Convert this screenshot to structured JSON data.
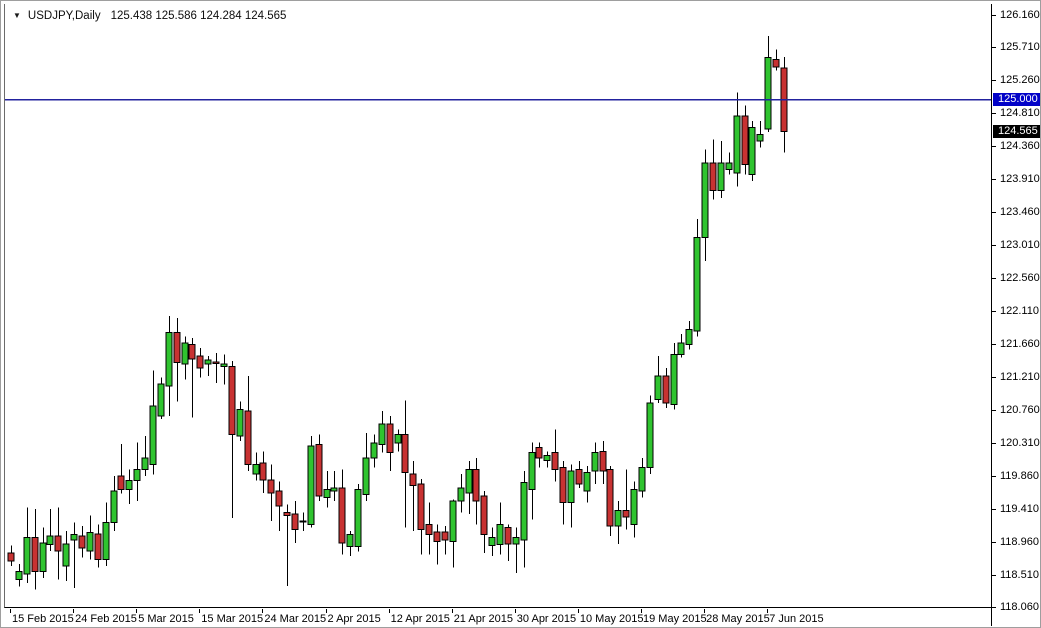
{
  "chart_data": {
    "type": "candlestick",
    "symbol": "USDJPY",
    "timeframe": "Daily",
    "title": "USDJPY,Daily",
    "ohlc_text": "125.438 125.586 124.284 124.565",
    "current_ohlc": {
      "open": 125.438,
      "high": 125.586,
      "low": 124.284,
      "close": 124.565
    },
    "y_axis": {
      "min": 118.06,
      "max": 126.16,
      "tick_step": 0.45,
      "ticks": [
        "126.160",
        "125.710",
        "125.260",
        "124.810",
        "124.360",
        "123.910",
        "123.460",
        "123.010",
        "122.560",
        "122.110",
        "121.660",
        "121.210",
        "120.760",
        "120.310",
        "119.860",
        "119.410",
        "118.960",
        "118.510",
        "118.060"
      ]
    },
    "x_axis": {
      "ticks": [
        {
          "label": "15 Feb 2015",
          "candle": 0
        },
        {
          "label": "24 Feb 2015",
          "candle": 8
        },
        {
          "label": "5 Mar 2015",
          "candle": 16
        },
        {
          "label": "15 Mar 2015",
          "candle": 24
        },
        {
          "label": "24 Mar 2015",
          "candle": 32
        },
        {
          "label": "2 Apr 2015",
          "candle": 40
        },
        {
          "label": "12 Apr 2015",
          "candle": 48
        },
        {
          "label": "21 Apr 2015",
          "candle": 56
        },
        {
          "label": "30 Apr 2015",
          "candle": 64
        },
        {
          "label": "10 May 2015",
          "candle": 72
        },
        {
          "label": "19 May 2015",
          "candle": 80
        },
        {
          "label": "28 May 2015",
          "candle": 88
        },
        {
          "label": "7 Jun 2015",
          "candle": 96
        }
      ]
    },
    "horizontal_line": {
      "price": 125.0,
      "label": "125.000",
      "line_color": "#22229e",
      "tag_color": "#0202c8"
    },
    "current_price_tag": {
      "price": 124.565,
      "label": "124.565",
      "tag_color": "#000000"
    },
    "colors": {
      "bull": "#2fc42f",
      "bear": "#c83232",
      "wick": "#000000",
      "background": "#ffffff"
    },
    "legend_position": "none",
    "grid": false,
    "candles": [
      [
        118.81,
        118.91,
        118.63,
        118.7
      ],
      [
        118.45,
        118.66,
        118.35,
        118.56
      ],
      [
        118.52,
        119.43,
        118.4,
        119.02
      ],
      [
        119.02,
        119.41,
        118.31,
        118.56
      ],
      [
        118.56,
        119.16,
        118.47,
        118.95
      ],
      [
        118.93,
        119.41,
        118.84,
        119.04
      ],
      [
        119.04,
        119.43,
        118.45,
        118.84
      ],
      [
        118.63,
        119.11,
        118.43,
        118.93
      ],
      [
        118.99,
        119.23,
        118.33,
        119.06
      ],
      [
        119.04,
        119.18,
        118.75,
        118.88
      ],
      [
        118.84,
        119.32,
        118.72,
        119.09
      ],
      [
        119.07,
        119.2,
        118.61,
        118.72
      ],
      [
        118.72,
        119.5,
        118.63,
        119.23
      ],
      [
        119.23,
        119.86,
        119.11,
        119.66
      ],
      [
        119.86,
        120.3,
        119.62,
        119.68
      ],
      [
        119.68,
        119.95,
        119.48,
        119.8
      ],
      [
        119.8,
        120.32,
        119.52,
        119.95
      ],
      [
        119.95,
        120.41,
        119.86,
        120.11
      ],
      [
        120.02,
        121.3,
        119.88,
        120.82
      ],
      [
        120.68,
        121.21,
        120.64,
        121.12
      ],
      [
        121.09,
        122.05,
        120.68,
        121.82
      ],
      [
        121.82,
        122.02,
        120.88,
        121.41
      ],
      [
        121.39,
        121.77,
        121.18,
        121.68
      ],
      [
        121.66,
        121.75,
        120.66,
        121.46
      ],
      [
        121.5,
        121.61,
        121.21,
        121.34
      ],
      [
        121.39,
        121.5,
        121.23,
        121.45
      ],
      [
        121.42,
        121.54,
        121.13,
        121.4
      ],
      [
        121.36,
        121.52,
        121.11,
        121.39
      ],
      [
        121.36,
        121.43,
        119.29,
        120.43
      ],
      [
        120.41,
        120.88,
        120.34,
        120.77
      ],
      [
        120.75,
        121.23,
        119.93,
        120.02
      ],
      [
        119.89,
        120.18,
        119.8,
        120.02
      ],
      [
        120.04,
        120.2,
        119.63,
        119.81
      ],
      [
        119.81,
        120.02,
        119.25,
        119.63
      ],
      [
        119.66,
        119.79,
        119.11,
        119.45
      ],
      [
        119.36,
        119.47,
        118.36,
        119.32
      ],
      [
        119.34,
        119.52,
        118.95,
        119.13
      ],
      [
        119.25,
        119.36,
        119.11,
        119.25
      ],
      [
        119.2,
        120.41,
        119.16,
        120.27
      ],
      [
        120.29,
        120.43,
        119.52,
        119.59
      ],
      [
        119.57,
        119.93,
        119.43,
        119.68
      ],
      [
        119.66,
        119.93,
        119.52,
        119.7
      ],
      [
        119.7,
        119.95,
        118.79,
        118.95
      ],
      [
        118.9,
        119.11,
        118.77,
        119.06
      ],
      [
        118.9,
        119.75,
        118.83,
        119.68
      ],
      [
        119.61,
        120.45,
        119.52,
        120.11
      ],
      [
        120.11,
        120.43,
        119.98,
        120.31
      ],
      [
        120.29,
        120.75,
        120.18,
        120.57
      ],
      [
        120.57,
        120.68,
        119.93,
        120.18
      ],
      [
        120.31,
        120.5,
        120.2,
        120.43
      ],
      [
        120.43,
        120.89,
        119.16,
        119.91
      ],
      [
        119.89,
        120.07,
        119.11,
        119.73
      ],
      [
        119.75,
        119.82,
        118.79,
        119.13
      ],
      [
        119.2,
        119.5,
        118.79,
        119.06
      ],
      [
        119.1,
        119.2,
        118.65,
        118.97
      ],
      [
        119.1,
        119.18,
        118.79,
        118.99
      ],
      [
        118.97,
        119.54,
        118.61,
        119.52
      ],
      [
        119.52,
        119.89,
        119.36,
        119.7
      ],
      [
        119.63,
        120.07,
        119.34,
        119.95
      ],
      [
        119.95,
        120.11,
        119.2,
        119.52
      ],
      [
        119.59,
        119.66,
        118.81,
        119.06
      ],
      [
        118.91,
        119.16,
        118.77,
        119.02
      ],
      [
        118.93,
        119.5,
        118.79,
        119.2
      ],
      [
        119.16,
        119.2,
        118.7,
        118.93
      ],
      [
        118.93,
        119.16,
        118.54,
        119.02
      ],
      [
        118.99,
        119.93,
        118.61,
        119.77
      ],
      [
        119.68,
        120.32,
        119.27,
        120.18
      ],
      [
        120.25,
        120.32,
        119.98,
        120.11
      ],
      [
        120.07,
        120.2,
        119.98,
        120.14
      ],
      [
        120.18,
        120.5,
        119.79,
        119.95
      ],
      [
        119.98,
        120.07,
        119.2,
        119.5
      ],
      [
        119.5,
        120.02,
        119.16,
        119.93
      ],
      [
        119.95,
        120.07,
        119.7,
        119.75
      ],
      [
        119.66,
        120.0,
        119.5,
        119.91
      ],
      [
        119.93,
        120.32,
        119.75,
        120.18
      ],
      [
        120.2,
        120.34,
        119.75,
        119.93
      ],
      [
        119.95,
        120.0,
        119.04,
        119.18
      ],
      [
        119.18,
        119.52,
        118.93,
        119.39
      ],
      [
        119.39,
        119.95,
        119.13,
        119.3
      ],
      [
        119.2,
        119.79,
        119.02,
        119.68
      ],
      [
        119.66,
        120.11,
        119.57,
        119.98
      ],
      [
        119.98,
        120.96,
        119.89,
        120.86
      ],
      [
        120.91,
        121.5,
        120.86,
        121.23
      ],
      [
        121.23,
        121.34,
        120.79,
        120.86
      ],
      [
        120.84,
        121.68,
        120.77,
        121.52
      ],
      [
        121.52,
        121.8,
        121.48,
        121.68
      ],
      [
        121.66,
        121.98,
        121.59,
        121.86
      ],
      [
        121.84,
        123.37,
        121.77,
        123.12
      ],
      [
        123.12,
        124.32,
        122.8,
        124.14
      ],
      [
        124.14,
        124.46,
        123.64,
        123.76
      ],
      [
        123.76,
        124.44,
        123.66,
        124.14
      ],
      [
        124.05,
        124.28,
        123.98,
        124.14
      ],
      [
        124.0,
        125.1,
        123.82,
        124.78
      ],
      [
        124.78,
        124.92,
        123.98,
        124.12
      ],
      [
        123.98,
        124.71,
        123.89,
        124.62
      ],
      [
        124.44,
        124.71,
        124.35,
        124.53
      ],
      [
        124.6,
        125.87,
        124.56,
        125.58
      ],
      [
        125.55,
        125.69,
        125.4,
        125.45
      ],
      [
        125.438,
        125.586,
        124.284,
        124.565
      ]
    ]
  }
}
